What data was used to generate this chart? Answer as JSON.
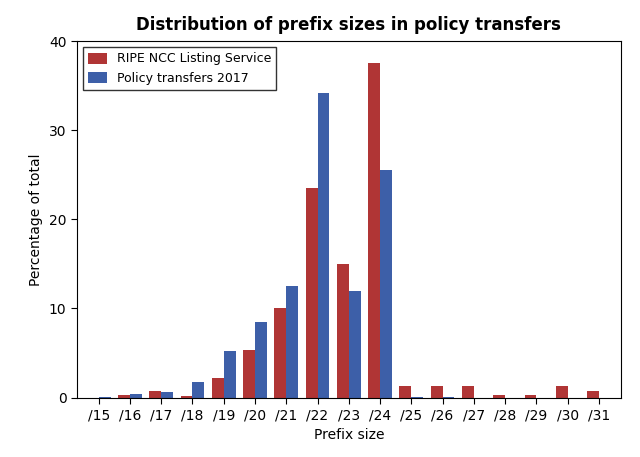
{
  "title": "Distribution of prefix sizes in policy transfers",
  "xlabel": "Prefix size",
  "ylabel": "Percentage of total",
  "categories": [
    "/15",
    "/16",
    "/17",
    "/18",
    "/19",
    "/20",
    "/21",
    "/22",
    "/23",
    "/24",
    "/25",
    "/26",
    "/27",
    "/28",
    "/29",
    "/30",
    "/31"
  ],
  "ripe_ncc": [
    0.0,
    0.3,
    0.7,
    0.2,
    2.2,
    5.3,
    10.0,
    23.5,
    15.0,
    37.5,
    1.3,
    1.3,
    1.3,
    0.3,
    0.3,
    1.3,
    0.7
  ],
  "policy_transfers": [
    0.05,
    0.4,
    0.6,
    1.8,
    5.2,
    8.5,
    12.5,
    34.2,
    12.0,
    25.5,
    0.1,
    0.1,
    0.0,
    0.0,
    0.0,
    0.0,
    0.0
  ],
  "ripe_color": "#b03535",
  "policy_color": "#3d5fa8",
  "ylim": [
    0,
    40
  ],
  "yticks": [
    0,
    10,
    20,
    30,
    40
  ],
  "legend_labels": [
    "RIPE NCC Listing Service",
    "Policy transfers 2017"
  ],
  "bar_width": 0.38,
  "figsize": [
    6.4,
    4.57
  ],
  "dpi": 100,
  "title_fontsize": 12,
  "axis_fontsize": 10,
  "label_fontsize": 10
}
